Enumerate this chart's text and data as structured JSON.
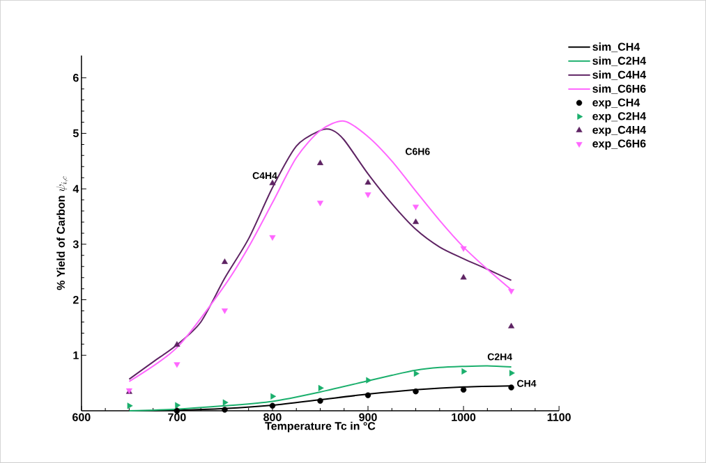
{
  "chart_data": {
    "type": "line",
    "xlabel": "Temperature Tc in °C",
    "ylabel": "\\textbf{\\% Yield of Carbon }\\psi_{i, c}",
    "xlim": [
      600,
      1100
    ],
    "xticks": [
      600,
      700,
      800,
      900,
      1000,
      1100
    ],
    "ylim": [
      0,
      6.4
    ],
    "yticks": [
      1,
      2,
      3,
      4,
      5,
      6
    ],
    "legend": "top right",
    "grid": false,
    "line_style": "solid",
    "series": [
      {
        "name": "sim_CH4",
        "color": "#000000",
        "x": [
          650,
          700,
          750,
          800,
          850,
          900,
          950,
          1000,
          1050
        ],
        "values": [
          0.0,
          0.01,
          0.04,
          0.1,
          0.2,
          0.3,
          0.38,
          0.43,
          0.45
        ]
      },
      {
        "name": "sim_C2H4",
        "color": "#1aaf6c",
        "x": [
          650,
          700,
          750,
          800,
          850,
          900,
          925,
          950,
          975,
          1000,
          1025,
          1050
        ],
        "values": [
          0.0,
          0.03,
          0.09,
          0.17,
          0.34,
          0.54,
          0.64,
          0.73,
          0.78,
          0.8,
          0.81,
          0.79
        ]
      },
      {
        "name": "sim_C4H4",
        "color": "#5e2363",
        "x": [
          650,
          675,
          700,
          725,
          750,
          775,
          800,
          825,
          850,
          862,
          875,
          900,
          925,
          950,
          975,
          1000,
          1025,
          1050
        ],
        "values": [
          0.57,
          0.88,
          1.19,
          1.6,
          2.39,
          3.1,
          4.02,
          4.77,
          5.05,
          5.06,
          4.88,
          4.27,
          3.73,
          3.27,
          2.95,
          2.74,
          2.55,
          2.35
        ]
      },
      {
        "name": "sim_C6H6",
        "color": "#ff66ff",
        "x": [
          650,
          700,
          750,
          775,
          800,
          825,
          850,
          875,
          900,
          925,
          950,
          975,
          1000,
          1025,
          1050
        ],
        "values": [
          0.53,
          1.14,
          2.26,
          2.95,
          3.75,
          4.56,
          5.05,
          5.22,
          4.94,
          4.5,
          3.96,
          3.43,
          2.95,
          2.55,
          2.18
        ]
      },
      {
        "name": "exp_CH4",
        "type": "scatter",
        "marker": "circle",
        "color": "#000000",
        "x": [
          700,
          750,
          800,
          850,
          900,
          950,
          1000,
          1050
        ],
        "values": [
          0.0,
          0.02,
          0.09,
          0.18,
          0.28,
          0.35,
          0.38,
          0.42
        ]
      },
      {
        "name": "exp_C2H4",
        "type": "scatter",
        "marker": "triangle-right",
        "color": "#1aaf6c",
        "x": [
          650,
          700,
          750,
          800,
          850,
          900,
          950,
          1000,
          1050
        ],
        "values": [
          0.09,
          0.1,
          0.15,
          0.26,
          0.41,
          0.55,
          0.67,
          0.71,
          0.68
        ]
      },
      {
        "name": "exp_C4H4",
        "type": "scatter",
        "marker": "triangle",
        "color": "#5e2363",
        "x": [
          650,
          700,
          750,
          800,
          850,
          900,
          950,
          1000,
          1050
        ],
        "values": [
          0.34,
          1.19,
          2.68,
          4.1,
          4.46,
          4.11,
          3.4,
          2.4,
          1.52
        ]
      },
      {
        "name": "exp_C6H6",
        "type": "scatter",
        "marker": "triangle-down",
        "color": "#ff66ff",
        "x": [
          650,
          700,
          750,
          800,
          850,
          900,
          950,
          1000,
          1050
        ],
        "values": [
          0.37,
          0.84,
          1.81,
          3.13,
          3.75,
          3.9,
          3.68,
          2.93,
          2.16
        ]
      }
    ],
    "annotations": [
      "C4H4",
      "C6H6",
      "C2H4",
      "CH4"
    ]
  }
}
